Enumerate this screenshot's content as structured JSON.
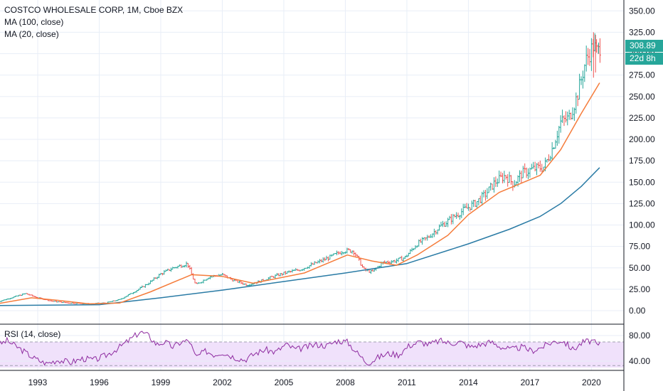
{
  "header": {
    "title": "COSTCO WHOLESALE CORP, 1M, Cboe BZX",
    "ma100_label": "MA (100, close)",
    "ma20_label": "MA (20, close)",
    "rsi_label": "RSI (14, close)"
  },
  "badges": {
    "last_price": "308.89",
    "countdown": "22d 8h"
  },
  "colors": {
    "up": "#26a69a",
    "down": "#ef5350",
    "ma20": "#f57c3b",
    "ma100": "#2a7ba5",
    "rsi": "#8e2ba0",
    "rsi_band": "#f0e1fb",
    "grid": "#e8eef7",
    "badge_up": "#26a69a"
  },
  "chart_data": [
    {
      "type": "candlestick",
      "title": "COSTCO WHOLESALE CORP, 1M, Cboe BZX",
      "ylim": [
        -15,
        365
      ],
      "y_ticks": [
        "0.00",
        "25.00",
        "50.00",
        "75.00",
        "100.00",
        "125.00",
        "150.00",
        "175.00",
        "200.00",
        "225.00",
        "250.00",
        "275.00",
        "300.00",
        "325.00",
        "350.00"
      ],
      "x_ticks": [
        "1993",
        "1996",
        "1999",
        "2002",
        "2005",
        "2008",
        "2011",
        "2014",
        "2017",
        "2020"
      ],
      "last_price": 308.89,
      "grid": true,
      "series": [
        {
          "name": "MA (100, close)",
          "points": [
            [
              1991.0,
              6
            ],
            [
              1996,
              7
            ],
            [
              1999,
              15
            ],
            [
              2002,
              24
            ],
            [
              2005,
              34
            ],
            [
              2008,
              44
            ],
            [
              2011,
              55
            ],
            [
              2014,
              78
            ],
            [
              2016,
              95
            ],
            [
              2017.5,
              110
            ],
            [
              2018.5,
              125
            ],
            [
              2019.5,
              145
            ],
            [
              2020.4,
              167
            ]
          ]
        },
        {
          "name": "MA (20, close)",
          "points": [
            [
              1991.0,
              8
            ],
            [
              1992.7,
              15
            ],
            [
              1994,
              12
            ],
            [
              1995.5,
              8
            ],
            [
              1997,
              9
            ],
            [
              1998.5,
              22
            ],
            [
              2000.5,
              42
            ],
            [
              2002,
              40
            ],
            [
              2003.5,
              32
            ],
            [
              2006,
              44
            ],
            [
              2008.1,
              65
            ],
            [
              2009.3,
              58
            ],
            [
              2010.5,
              53
            ],
            [
              2011.5,
              65
            ],
            [
              2013,
              88
            ],
            [
              2014,
              112
            ],
            [
              2015.5,
              138
            ],
            [
              2016.5,
              148
            ],
            [
              2017.5,
              158
            ],
            [
              2018.5,
              188
            ],
            [
              2019.5,
              230
            ],
            [
              2020.4,
              266
            ]
          ]
        },
        {
          "name": "Monthly close",
          "points": [
            [
              1991.0,
              10
            ],
            [
              1991.7,
              15
            ],
            [
              1992.4,
              20
            ],
            [
              1993,
              15
            ],
            [
              1993.7,
              11
            ],
            [
              1994.5,
              9
            ],
            [
              1995.5,
              8
            ],
            [
              1996.3,
              9
            ],
            [
              1997,
              13
            ],
            [
              1997.7,
              22
            ],
            [
              1998.4,
              32
            ],
            [
              1999,
              43
            ],
            [
              1999.6,
              50
            ],
            [
              2000.3,
              55
            ],
            [
              2000.7,
              30
            ],
            [
              2001.4,
              40
            ],
            [
              2002,
              42
            ],
            [
              2002.5,
              36
            ],
            [
              2003.2,
              30
            ],
            [
              2003.8,
              34
            ],
            [
              2004.5,
              40
            ],
            [
              2005.2,
              45
            ],
            [
              2005.8,
              48
            ],
            [
              2006.5,
              55
            ],
            [
              2007.2,
              62
            ],
            [
              2007.9,
              70
            ],
            [
              2008.4,
              70
            ],
            [
              2008.9,
              48
            ],
            [
              2009.3,
              45
            ],
            [
              2009.8,
              56
            ],
            [
              2010.4,
              58
            ],
            [
              2010.9,
              62
            ],
            [
              2011.5,
              78
            ],
            [
              2012,
              85
            ],
            [
              2012.6,
              98
            ],
            [
              2013.2,
              108
            ],
            [
              2013.8,
              118
            ],
            [
              2014.3,
              125
            ],
            [
              2014.8,
              135
            ],
            [
              2015.3,
              150
            ],
            [
              2015.8,
              158
            ],
            [
              2016.2,
              148
            ],
            [
              2016.6,
              160
            ],
            [
              2017.1,
              165
            ],
            [
              2017.7,
              168
            ],
            [
              2018.1,
              190
            ],
            [
              2018.5,
              220
            ],
            [
              2018.9,
              225
            ],
            [
              2019.3,
              250
            ],
            [
              2019.7,
              290
            ],
            [
              2020.1,
              310
            ],
            [
              2020.3,
              300
            ],
            [
              2020.4,
              308.89
            ]
          ]
        }
      ]
    },
    {
      "type": "line",
      "title": "RSI (14, close)",
      "ylim": [
        30,
        92
      ],
      "y_ticks": [
        "40.00",
        "80.00"
      ],
      "band": [
        30,
        70
      ],
      "series": [
        {
          "name": "RSI (14, close)",
          "points": [
            [
              1991.0,
              64
            ],
            [
              1991.5,
              72
            ],
            [
              1992.2,
              58
            ],
            [
              1992.8,
              45
            ],
            [
              1993.4,
              36
            ],
            [
              1994,
              42
            ],
            [
              1994.6,
              38
            ],
            [
              1995.2,
              44
            ],
            [
              1995.8,
              42
            ],
            [
              1996.4,
              50
            ],
            [
              1997,
              62
            ],
            [
              1997.6,
              76
            ],
            [
              1998,
              86
            ],
            [
              1998.4,
              80
            ],
            [
              1998.8,
              66
            ],
            [
              1999.2,
              70
            ],
            [
              1999.6,
              62
            ],
            [
              2000,
              70
            ],
            [
              2000.4,
              72
            ],
            [
              2000.7,
              46
            ],
            [
              2001.2,
              56
            ],
            [
              2001.6,
              50
            ],
            [
              2002,
              54
            ],
            [
              2002.6,
              46
            ],
            [
              2003.1,
              42
            ],
            [
              2003.6,
              52
            ],
            [
              2004.1,
              58
            ],
            [
              2004.6,
              54
            ],
            [
              2005.1,
              66
            ],
            [
              2005.6,
              58
            ],
            [
              2006.1,
              62
            ],
            [
              2006.6,
              66
            ],
            [
              2007.1,
              64
            ],
            [
              2007.6,
              72
            ],
            [
              2008.1,
              70
            ],
            [
              2008.6,
              52
            ],
            [
              2009.1,
              36
            ],
            [
              2009.6,
              46
            ],
            [
              2010.1,
              52
            ],
            [
              2010.6,
              50
            ],
            [
              2011.1,
              64
            ],
            [
              2011.6,
              70
            ],
            [
              2012.1,
              66
            ],
            [
              2012.6,
              72
            ],
            [
              2013.1,
              68
            ],
            [
              2013.6,
              70
            ],
            [
              2014.1,
              62
            ],
            [
              2014.6,
              66
            ],
            [
              2015.1,
              70
            ],
            [
              2015.6,
              62
            ],
            [
              2016.1,
              58
            ],
            [
              2016.6,
              62
            ],
            [
              2017.1,
              56
            ],
            [
              2017.6,
              62
            ],
            [
              2018.1,
              70
            ],
            [
              2018.6,
              72
            ],
            [
              2019.1,
              58
            ],
            [
              2019.6,
              70
            ],
            [
              2020.1,
              72
            ],
            [
              2020.3,
              62
            ],
            [
              2020.4,
              68
            ]
          ]
        }
      ]
    }
  ]
}
